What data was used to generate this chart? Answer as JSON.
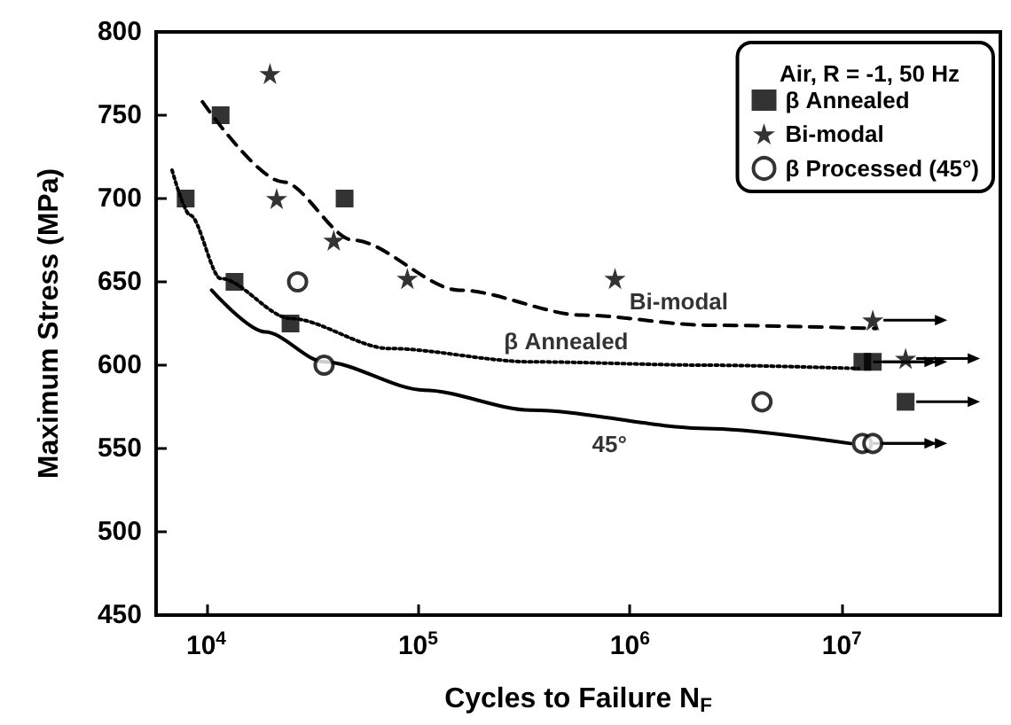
{
  "chart_data": {
    "type": "scatter",
    "xlabel": "Cycles to Failure N$_{F}$",
    "ylabel": "Maximum Stress (MPa)",
    "legend_title": "Air, R = -1, 50 Hz",
    "legend": "top right",
    "log": "x",
    "grid": false,
    "xlim": [
      5800,
      56000000
    ],
    "xticks": [
      {
        "value": 10000,
        "label": "10$^{4}$"
      },
      {
        "value": 100000,
        "label": "10$^{5}$"
      },
      {
        "value": 1000000,
        "label": "10$^{6}$"
      },
      {
        "value": 10000000,
        "label": "10$^{7}$"
      }
    ],
    "ylim": [
      450,
      800
    ],
    "yticks": [
      450,
      500,
      550,
      600,
      650,
      700,
      750,
      800
    ],
    "series": [
      {
        "name": "β Annealed",
        "color": "#000000",
        "marker": "square",
        "x": [
          8000,
          11700,
          13600,
          25000,
          45000,
          12500000,
          14000000,
          20000000
        ],
        "values": [
          700,
          750,
          650,
          625,
          700,
          602,
          602,
          578
        ]
      },
      {
        "name": "Bi-modal",
        "color": "#000000",
        "marker": "star",
        "x": [
          20000,
          21500,
          40000,
          89000,
          850000,
          14000000,
          20000000
        ],
        "values": [
          775,
          700,
          675,
          652,
          652,
          627,
          604
        ]
      },
      {
        "name": "β Processed (45°)",
        "color": "#000000",
        "marker": "circle",
        "x": [
          27000,
          36000,
          4200000,
          12500000,
          14000000
        ],
        "values": [
          650,
          600,
          578,
          553,
          553
        ]
      },
      {
        "type": "line",
        "color": "#000000",
        "marker": "none",
        "line_style": "dotted",
        "x": [
          6900,
          8400,
          11700,
          25000,
          73000,
          340000,
          2300000,
          12000000
        ],
        "values": [
          717,
          690,
          652,
          628,
          610,
          602,
          600,
          598
        ]
      },
      {
        "type": "line",
        "color": "#000000",
        "marker": "none",
        "line_style": "dashed",
        "x": [
          9600,
          23000,
          49500,
          157000,
          600000,
          2300000,
          14500000
        ],
        "values": [
          758,
          710,
          675,
          645,
          630,
          624,
          622
        ]
      },
      {
        "type": "line",
        "color": "#000000",
        "marker": "none",
        "line_style": "solid",
        "x": [
          10600,
          19000,
          36000,
          107000,
          340000,
          2300000,
          11000000
        ],
        "values": [
          645,
          620,
          602,
          585,
          573,
          562,
          553
        ]
      }
    ],
    "annotations": [
      {
        "text": "Bi-modal",
        "x": 1700000,
        "y": 625
      },
      {
        "text": "β Annealed",
        "x": 500000,
        "y": 601
      },
      {
        "text": "45°",
        "x": 800000,
        "y": 566
      }
    ]
  }
}
